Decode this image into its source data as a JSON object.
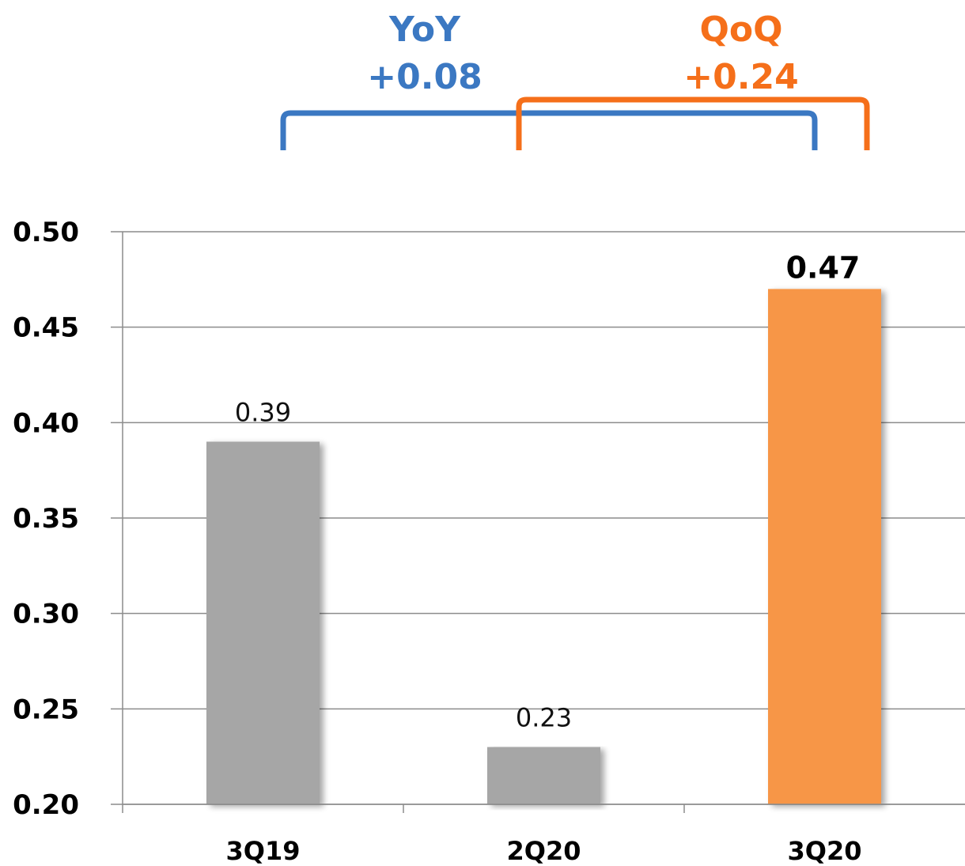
{
  "chart_data": {
    "type": "bar",
    "categories": [
      "3Q19",
      "2Q20",
      "3Q20"
    ],
    "values": [
      0.39,
      0.23,
      0.47
    ],
    "data_labels": [
      "0.39",
      "0.23",
      "0.47"
    ],
    "bar_colors": [
      "#a6a6a6",
      "#a6a6a6",
      "#f79646"
    ],
    "ylim": [
      0.2,
      0.5
    ],
    "yticks": [
      "0.20",
      "0.25",
      "0.30",
      "0.35",
      "0.40",
      "0.45",
      "0.50"
    ],
    "grid": true,
    "title": "",
    "xlabel": "",
    "ylabel": ""
  },
  "annotations": {
    "yoy": {
      "label": "YoY",
      "value": "+0.08",
      "color": "#3b78c2"
    },
    "qoq": {
      "label": "QoQ",
      "value": "+0.24",
      "color": "#f56f1a"
    }
  }
}
